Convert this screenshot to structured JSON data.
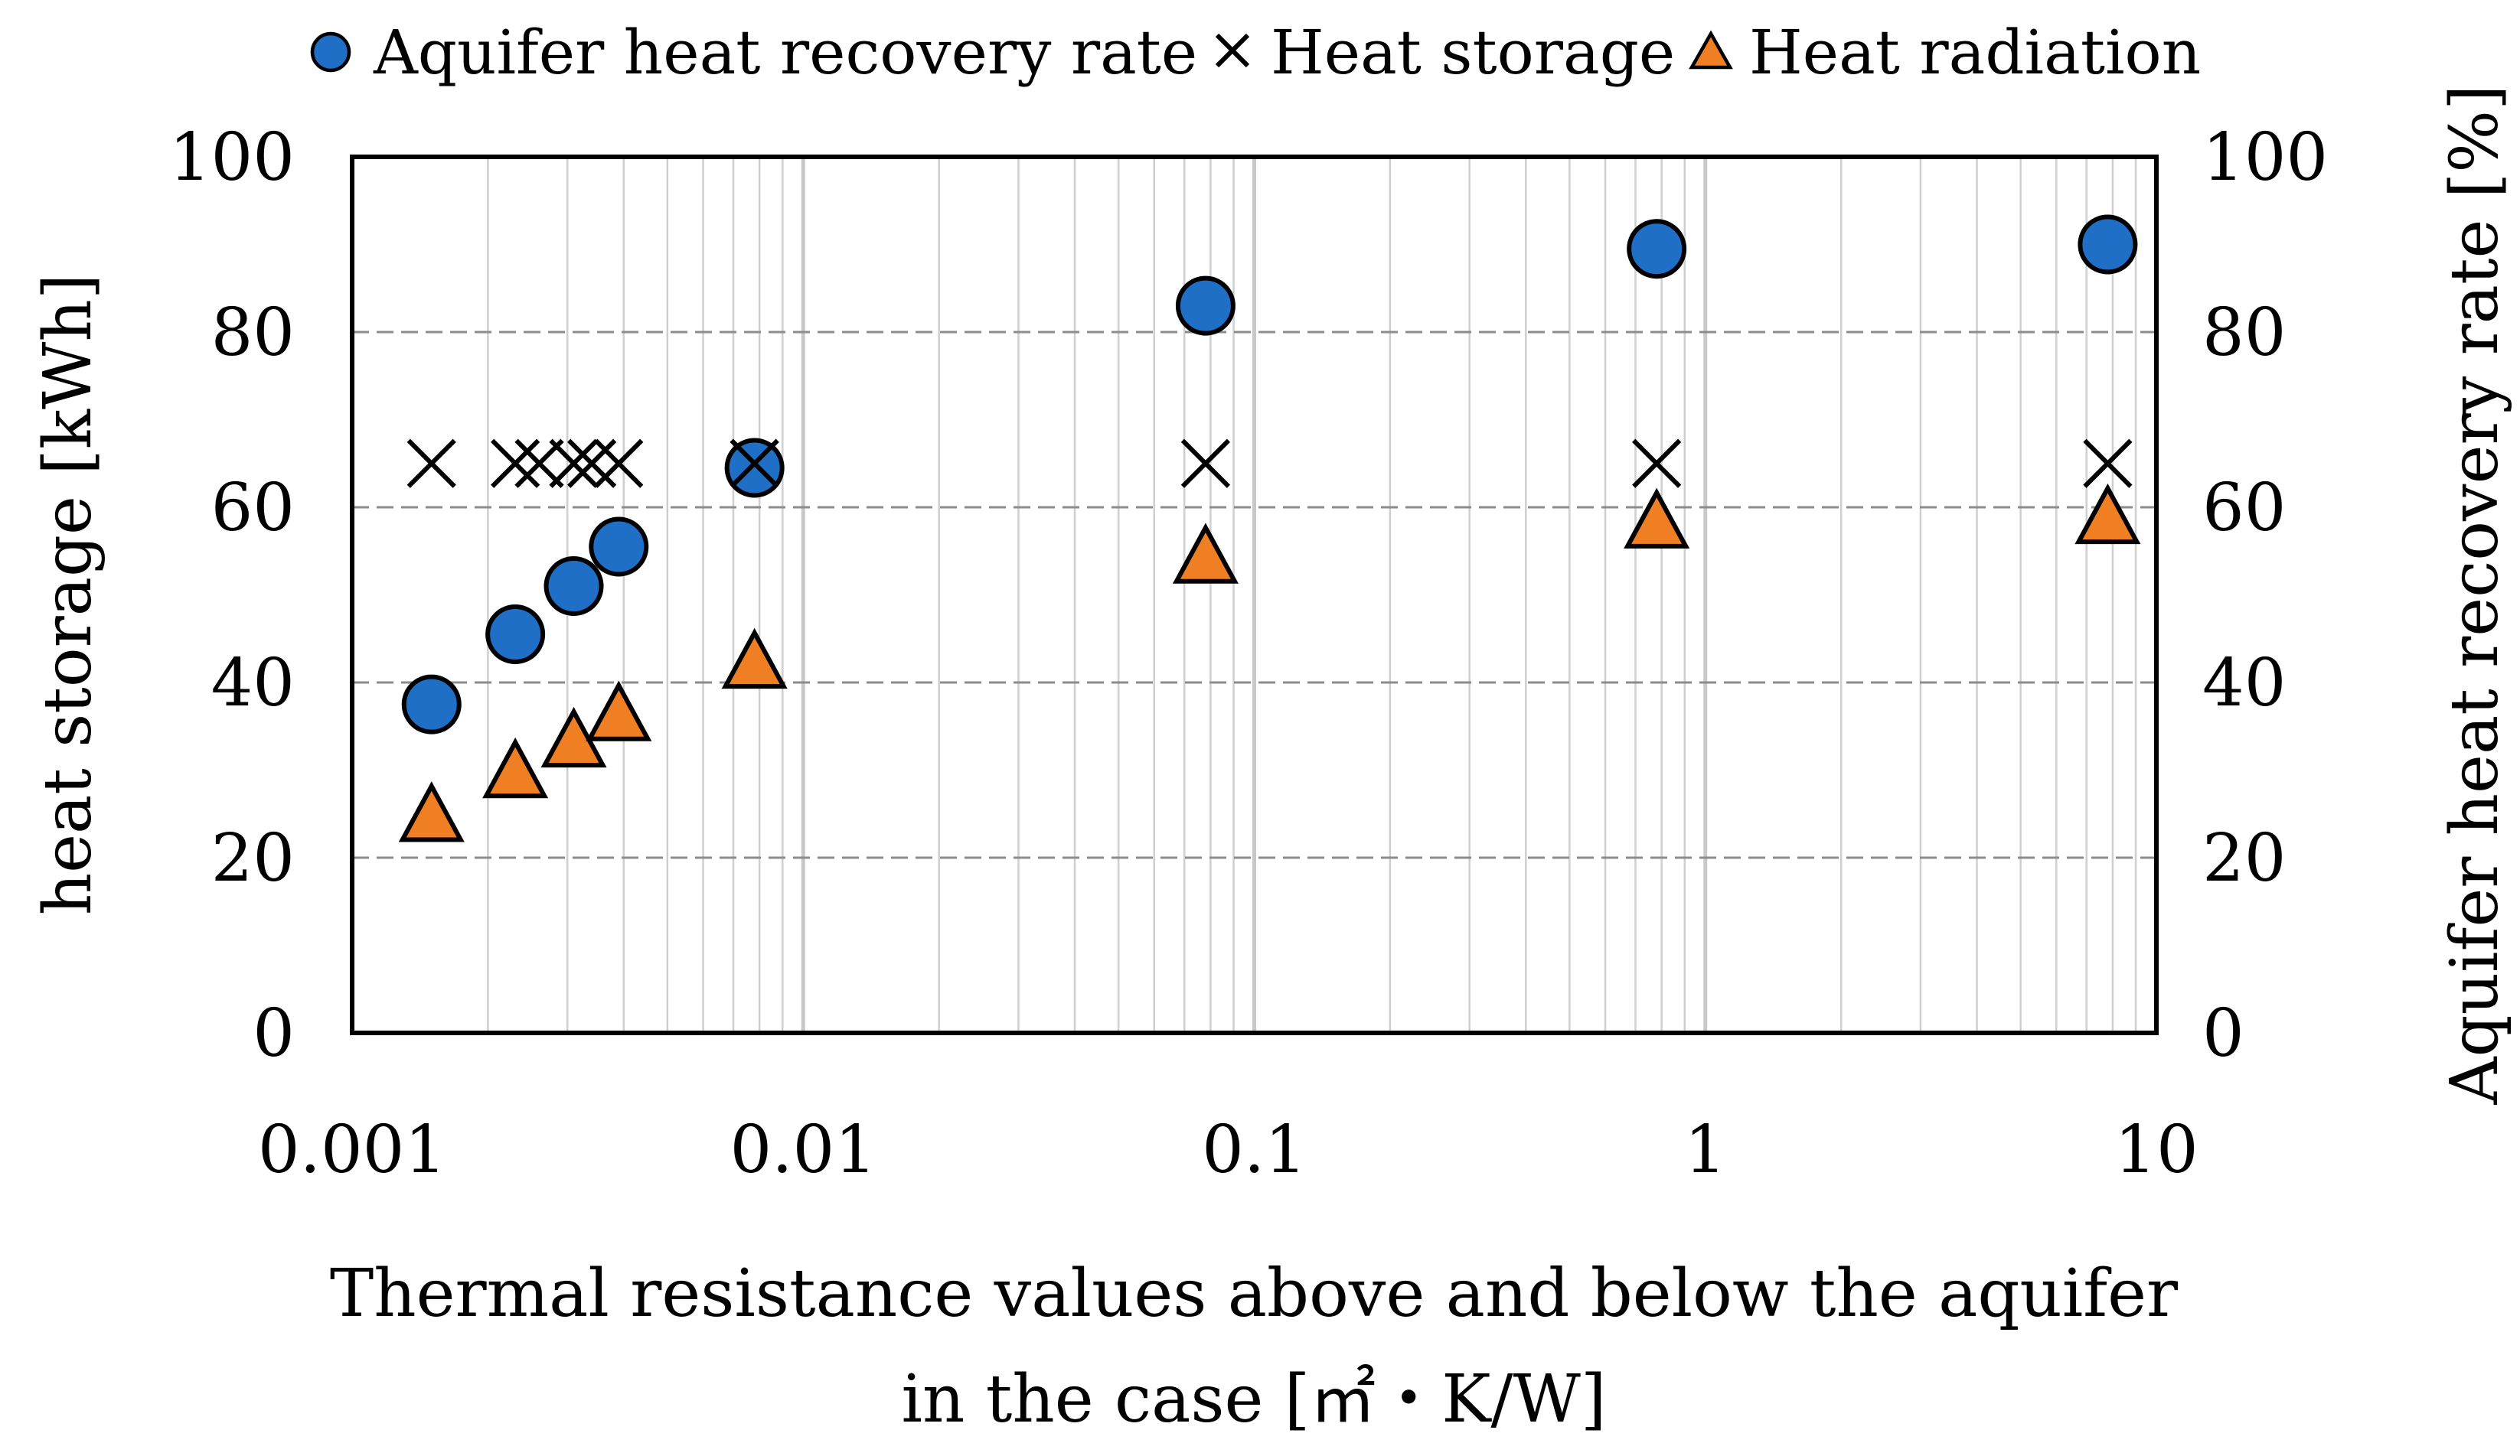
{
  "chart_data": {
    "type": "scatter",
    "x_scale": "log",
    "xlim": [
      0.001,
      10
    ],
    "ylim": [
      0,
      100
    ],
    "y2lim": [
      0,
      100
    ],
    "x_ticks": [
      {
        "value": 0.001,
        "label": "0.001"
      },
      {
        "value": 0.01,
        "label": "0.01"
      },
      {
        "value": 0.1,
        "label": "0.1"
      },
      {
        "value": 1,
        "label": "1"
      },
      {
        "value": 10,
        "label": "10"
      }
    ],
    "y_ticks": [
      {
        "value": 0,
        "label": "0"
      },
      {
        "value": 20,
        "label": "20"
      },
      {
        "value": 40,
        "label": "40"
      },
      {
        "value": 60,
        "label": "60"
      },
      {
        "value": 80,
        "label": "80"
      },
      {
        "value": 100,
        "label": "100"
      }
    ],
    "y2_ticks": [
      {
        "value": 0,
        "label": "0"
      },
      {
        "value": 20,
        "label": "20"
      },
      {
        "value": 40,
        "label": "40"
      },
      {
        "value": 60,
        "label": "60"
      },
      {
        "value": 80,
        "label": "80"
      },
      {
        "value": 100,
        "label": "100"
      }
    ],
    "xlabel_line1": "Thermal resistance values above and below the aquifer",
    "xlabel_line2": "in the case [㎡・K/W]",
    "ylabel": "heat storage [kWh]",
    "y2label": "Aquifer heat recovery rate [%]",
    "grid": true,
    "legend_position": "top",
    "series": [
      {
        "name": "Aquifer heat recovery rate",
        "marker": "circle",
        "axis": "right",
        "color": "#1F6FC7",
        "x": [
          0.0015,
          0.0023,
          0.0031,
          0.0039,
          0.0078,
          0.078,
          0.78,
          7.8
        ],
        "y": [
          37.5,
          45.5,
          51,
          55.5,
          64.5,
          83,
          89.5,
          90
        ]
      },
      {
        "name": "Heat storage",
        "marker": "x",
        "axis": "left",
        "color": "#000000",
        "x": [
          0.0015,
          0.0023,
          0.0031,
          0.0039,
          0.0078,
          0.078,
          0.78,
          7.8
        ],
        "y": [
          65,
          65,
          65,
          65,
          65,
          65,
          65,
          65
        ]
      },
      {
        "name": "Heat radiation",
        "marker": "triangle",
        "axis": "left",
        "color": "#F07F24",
        "x": [
          0.0015,
          0.0023,
          0.0031,
          0.0039,
          0.0078,
          0.078,
          0.78,
          7.8
        ],
        "y": [
          24.5,
          29.5,
          33,
          36,
          42,
          54,
          58,
          58.5
        ]
      }
    ],
    "extra_x_markers": [
      0.0026,
      0.0034
    ]
  }
}
